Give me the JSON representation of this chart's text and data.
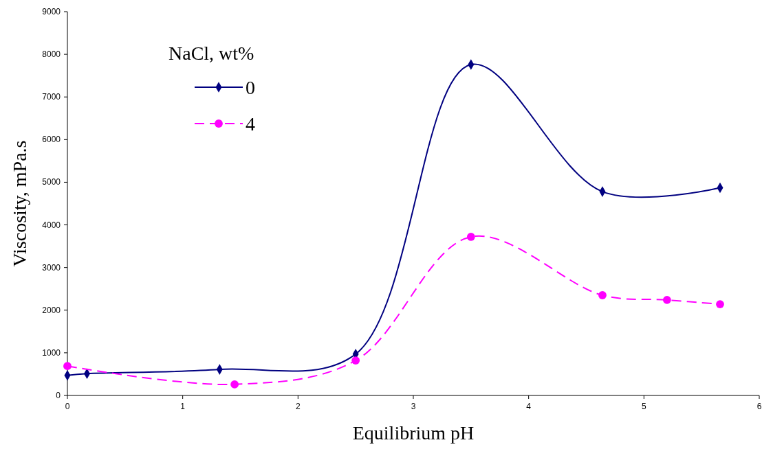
{
  "chart_data": {
    "type": "line",
    "xlabel": "Equilibrium pH",
    "ylabel": "Viscosity, mPa.s",
    "legend_title": "NaCl, wt%",
    "legend": "top left",
    "xlim": [
      0,
      6
    ],
    "xticks": [
      0,
      1,
      2,
      3,
      4,
      5,
      6
    ],
    "ylim": [
      0,
      9000
    ],
    "yticks": [
      0,
      1000,
      2000,
      3000,
      4000,
      5000,
      6000,
      7000,
      8000,
      9000
    ],
    "series": [
      {
        "name": "0",
        "color": "#000080",
        "marker": "diamond",
        "line_style": "solid",
        "x": [
          0,
          0.17,
          1.32,
          2.5,
          3.5,
          4.64,
          5.66
        ],
        "values": [
          470,
          510,
          610,
          970,
          7760,
          4780,
          4870
        ]
      },
      {
        "name": "4",
        "color": "#ff00ff",
        "marker": "circle",
        "line_style": "dashed",
        "x": [
          0,
          1.45,
          2.5,
          3.5,
          4.64,
          5.2,
          5.66
        ],
        "values": [
          690,
          260,
          820,
          3720,
          2350,
          2240,
          2140
        ]
      }
    ]
  }
}
